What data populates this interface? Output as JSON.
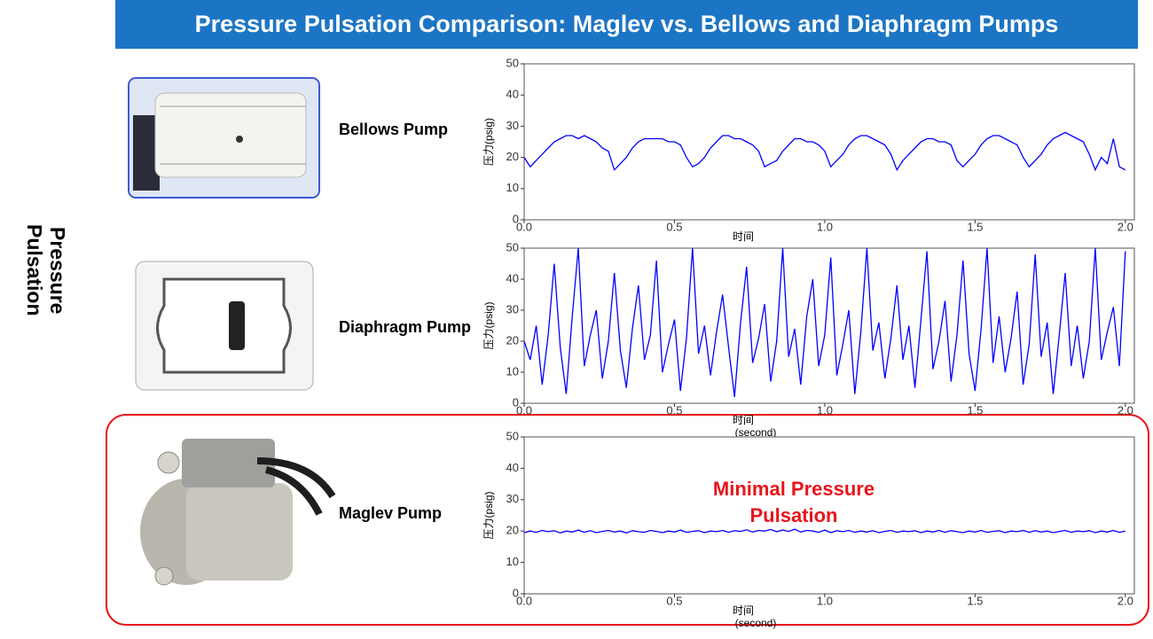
{
  "header": {
    "title": "Pressure Pulsation Comparison: Maglev vs. Bellows and Diaphragm Pumps"
  },
  "side_label": "Pressure Pulsation",
  "chart_data": [
    {
      "type": "line",
      "label": "Bellows Pump",
      "ylabel": "压力(psig)",
      "xlabel": "时间",
      "color": "#0000ff",
      "xlim": [
        0,
        2.03
      ],
      "ylim": [
        0,
        50
      ],
      "xticks": [
        {
          "value": 0,
          "label": "0.0"
        },
        0.5,
        {
          "value": 1,
          "label": "1.0"
        },
        1.5,
        {
          "value": 2,
          "label": "2.0"
        }
      ],
      "yticks": [
        0,
        10,
        20,
        30,
        40,
        50
      ],
      "x": [
        0,
        0.02,
        0.04,
        0.06,
        0.08,
        0.1,
        0.12,
        0.14,
        0.16,
        0.18,
        0.2,
        0.22,
        0.24,
        0.26,
        0.28,
        0.3,
        0.32,
        0.34,
        0.36,
        0.38,
        0.4,
        0.42,
        0.44,
        0.46,
        0.48,
        0.5,
        0.52,
        0.54,
        0.56,
        0.58,
        0.6,
        0.62,
        0.64,
        0.66,
        0.68,
        0.7,
        0.72,
        0.74,
        0.76,
        0.78,
        0.8,
        0.82,
        0.84,
        0.86,
        0.88,
        0.9,
        0.92,
        0.94,
        0.96,
        0.98,
        1,
        1.02,
        1.04,
        1.06,
        1.08,
        1.1,
        1.12,
        1.14,
        1.16,
        1.18,
        1.2,
        1.22,
        1.24,
        1.26,
        1.28,
        1.3,
        1.32,
        1.34,
        1.36,
        1.38,
        1.4,
        1.42,
        1.44,
        1.46,
        1.48,
        1.5,
        1.52,
        1.54,
        1.56,
        1.58,
        1.6,
        1.62,
        1.64,
        1.66,
        1.68,
        1.7,
        1.72,
        1.74,
        1.76,
        1.78,
        1.8,
        1.82,
        1.84,
        1.86,
        1.88,
        1.9,
        1.92,
        1.94,
        1.96,
        1.98,
        2
      ],
      "values": [
        20,
        17,
        19,
        21,
        23,
        25,
        26,
        27,
        27,
        26,
        27,
        26,
        25,
        23,
        22,
        16,
        18,
        20,
        23,
        25,
        26,
        26,
        26,
        26,
        25,
        25,
        24,
        20,
        17,
        18,
        20,
        23,
        25,
        27,
        27,
        26,
        26,
        25,
        24,
        22,
        17,
        18,
        19,
        22,
        24,
        26,
        26,
        25,
        25,
        24,
        22,
        17,
        19,
        21,
        24,
        26,
        27,
        27,
        26,
        25,
        24,
        21,
        16,
        19,
        21,
        23,
        25,
        26,
        26,
        25,
        25,
        24,
        19,
        17,
        19,
        21,
        24,
        26,
        27,
        27,
        26,
        25,
        24,
        20,
        17,
        19,
        21,
        24,
        26,
        27,
        28,
        27,
        26,
        25,
        21,
        16,
        20,
        18,
        26,
        17,
        16
      ]
    },
    {
      "type": "line",
      "label": "Diaphragm Pump",
      "ylabel": "压力(psig)",
      "xlabel": "时间",
      "xlabel2": "(second)",
      "color": "#0000ff",
      "xlim": [
        0,
        2.03
      ],
      "ylim": [
        0,
        50
      ],
      "xticks": [
        {
          "value": 0,
          "label": "0.0"
        },
        0.5,
        {
          "value": 1,
          "label": "1.0"
        },
        1.5,
        {
          "value": 2,
          "label": "2.0"
        }
      ],
      "yticks": [
        0,
        10,
        20,
        30,
        40,
        50
      ],
      "x": [
        0,
        0.02,
        0.04,
        0.06,
        0.08,
        0.1,
        0.12,
        0.14,
        0.16,
        0.18,
        0.2,
        0.22,
        0.24,
        0.26,
        0.28,
        0.3,
        0.32,
        0.34,
        0.36,
        0.38,
        0.4,
        0.42,
        0.44,
        0.46,
        0.48,
        0.5,
        0.52,
        0.54,
        0.56,
        0.58,
        0.6,
        0.62,
        0.64,
        0.66,
        0.68,
        0.7,
        0.72,
        0.74,
        0.76,
        0.78,
        0.8,
        0.82,
        0.84,
        0.86,
        0.88,
        0.9,
        0.92,
        0.94,
        0.96,
        0.98,
        1,
        1.02,
        1.04,
        1.06,
        1.08,
        1.1,
        1.12,
        1.14,
        1.16,
        1.18,
        1.2,
        1.22,
        1.24,
        1.26,
        1.28,
        1.3,
        1.32,
        1.34,
        1.36,
        1.38,
        1.4,
        1.42,
        1.44,
        1.46,
        1.48,
        1.5,
        1.52,
        1.54,
        1.56,
        1.58,
        1.6,
        1.62,
        1.64,
        1.66,
        1.68,
        1.7,
        1.72,
        1.74,
        1.76,
        1.78,
        1.8,
        1.82,
        1.84,
        1.86,
        1.88,
        1.9,
        1.92,
        1.94,
        1.96,
        1.98,
        2
      ],
      "values": [
        20,
        14,
        25,
        6,
        22,
        45,
        18,
        3,
        28,
        50,
        12,
        22,
        30,
        8,
        20,
        42,
        17,
        5,
        24,
        38,
        14,
        22,
        46,
        10,
        19,
        27,
        4,
        21,
        50,
        16,
        25,
        9,
        23,
        35,
        18,
        2,
        26,
        44,
        13,
        21,
        32,
        7,
        20,
        50,
        15,
        24,
        6,
        28,
        40,
        12,
        22,
        47,
        9,
        19,
        30,
        3,
        23,
        50,
        17,
        26,
        8,
        21,
        38,
        14,
        25,
        5,
        27,
        49,
        11,
        20,
        33,
        7,
        22,
        46,
        16,
        4,
        24,
        50,
        13,
        28,
        10,
        21,
        36,
        6,
        19,
        48,
        15,
        26,
        3,
        22,
        42,
        12,
        25,
        8,
        20,
        50,
        14,
        23,
        31,
        12,
        49
      ]
    },
    {
      "type": "line",
      "label": "Maglev Pump",
      "ylabel": "压力(psig)",
      "xlabel": "时间",
      "xlabel2": "(second)",
      "color": "#0000ff",
      "annotation": "Minimal Pressure Pulsation",
      "xlim": [
        0,
        2.03
      ],
      "ylim": [
        0,
        50
      ],
      "xticks": [
        {
          "value": 0,
          "label": "0.0"
        },
        0.5,
        {
          "value": 1,
          "label": "1.0"
        },
        1.5,
        {
          "value": 2,
          "label": "2.0"
        }
      ],
      "yticks": [
        0,
        10,
        20,
        30,
        40,
        50
      ],
      "x": [
        0,
        0.02,
        0.04,
        0.06,
        0.08,
        0.1,
        0.12,
        0.14,
        0.16,
        0.18,
        0.2,
        0.22,
        0.24,
        0.26,
        0.28,
        0.3,
        0.32,
        0.34,
        0.36,
        0.38,
        0.4,
        0.42,
        0.44,
        0.46,
        0.48,
        0.5,
        0.52,
        0.54,
        0.56,
        0.58,
        0.6,
        0.62,
        0.64,
        0.66,
        0.68,
        0.7,
        0.72,
        0.74,
        0.76,
        0.78,
        0.8,
        0.82,
        0.84,
        0.86,
        0.88,
        0.9,
        0.92,
        0.94,
        0.96,
        0.98,
        1,
        1.02,
        1.04,
        1.06,
        1.08,
        1.1,
        1.12,
        1.14,
        1.16,
        1.18,
        1.2,
        1.22,
        1.24,
        1.26,
        1.28,
        1.3,
        1.32,
        1.34,
        1.36,
        1.38,
        1.4,
        1.42,
        1.44,
        1.46,
        1.48,
        1.5,
        1.52,
        1.54,
        1.56,
        1.58,
        1.6,
        1.62,
        1.64,
        1.66,
        1.68,
        1.7,
        1.72,
        1.74,
        1.76,
        1.78,
        1.8,
        1.82,
        1.84,
        1.86,
        1.88,
        1.9,
        1.92,
        1.94,
        1.96,
        1.98,
        2
      ],
      "values": [
        19.5,
        20,
        19.6,
        20.2,
        19.8,
        20.1,
        19.4,
        20,
        19.7,
        20.3,
        19.6,
        20.1,
        19.5,
        19.9,
        20.2,
        19.7,
        20,
        19.4,
        20.1,
        19.8,
        19.6,
        20.2,
        19.9,
        19.5,
        20,
        19.7,
        20.3,
        19.6,
        19.9,
        20.1,
        19.5,
        20,
        19.8,
        20.2,
        19.6,
        20.1,
        19.9,
        20.4,
        19.7,
        20.2,
        20,
        20.5,
        19.8,
        20.3,
        19.9,
        20.6,
        19.7,
        20.2,
        20,
        19.6,
        20.3,
        19.5,
        20.1,
        19.8,
        20.2,
        19.6,
        20,
        19.7,
        20.1,
        19.5,
        19.9,
        20.2,
        19.6,
        20,
        19.8,
        20.1,
        19.5,
        20,
        19.7,
        20.2,
        19.6,
        20.1,
        19.8,
        19.5,
        20,
        19.7,
        20.2,
        19.6,
        19.9,
        20.1,
        19.5,
        20,
        19.8,
        20.2,
        19.6,
        20.1,
        19.7,
        20,
        19.5,
        19.9,
        20.2,
        19.6,
        20,
        19.8,
        20.1,
        19.5,
        20,
        19.7,
        20.2,
        19.6,
        20
      ]
    }
  ]
}
